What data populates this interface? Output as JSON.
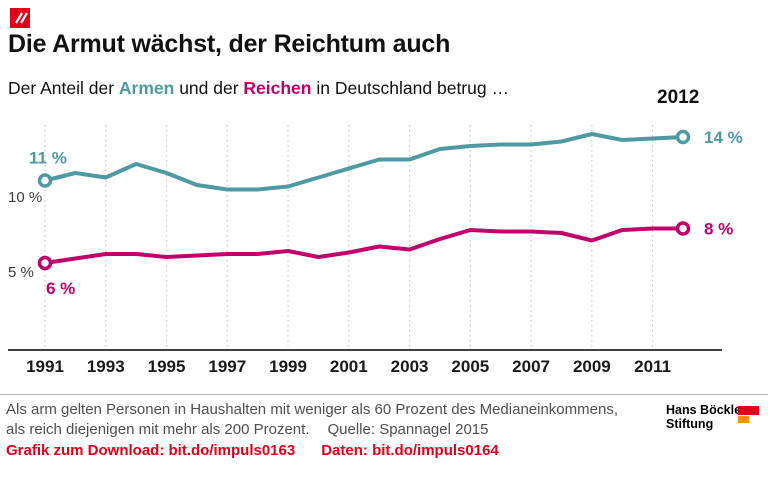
{
  "header": {
    "title": "Die Armut wächst, der Reichtum auch",
    "subtitle": {
      "pre": "Der Anteil der ",
      "armen": "Armen",
      "mid": " und der ",
      "reichen": "Reichen",
      "post": " in Deutschland betrug …"
    },
    "year_label": "2012"
  },
  "colors": {
    "teal": "#4D9AA3",
    "magenta": "#C2006B",
    "link_red": "#E2001A",
    "grid": "#C8C8C8",
    "axis": "#000000",
    "tick_text": "#1A1A1A",
    "ytick_text": "#3C3C3C"
  },
  "chart_data": {
    "type": "line",
    "x": [
      1991,
      1992,
      1993,
      1994,
      1995,
      1996,
      1997,
      1998,
      1999,
      2000,
      2001,
      2002,
      2003,
      2004,
      2005,
      2006,
      2007,
      2008,
      2009,
      2010,
      2011,
      2012
    ],
    "series": [
      {
        "name": "Armen",
        "color_key": "teal",
        "values": [
          11.1,
          11.6,
          11.3,
          12.2,
          11.6,
          10.8,
          10.5,
          10.5,
          10.7,
          11.3,
          11.9,
          12.5,
          12.5,
          13.2,
          13.4,
          13.5,
          13.5,
          13.7,
          14.2,
          13.8,
          13.9,
          14.0
        ],
        "start_label": "11 %",
        "end_label": "14 %"
      },
      {
        "name": "Reichen",
        "color_key": "magenta",
        "values": [
          5.6,
          5.9,
          6.2,
          6.2,
          6.0,
          6.1,
          6.2,
          6.2,
          6.4,
          6.0,
          6.3,
          6.7,
          6.5,
          7.2,
          7.8,
          7.7,
          7.7,
          7.6,
          7.1,
          7.8,
          7.9,
          7.9
        ],
        "start_label": "6 %",
        "end_label": "8 %"
      }
    ],
    "xtick_labels": [
      "1991",
      "1993",
      "1995",
      "1997",
      "1999",
      "2001",
      "2003",
      "2005",
      "2007",
      "2009",
      "2011"
    ],
    "yticks": [
      {
        "value": 10,
        "label": "10 %"
      },
      {
        "value": 5,
        "label": "5 %"
      }
    ],
    "ylim": [
      4,
      15
    ],
    "grid": "vertical-dotted",
    "legend": "inline-in-subtitle"
  },
  "footer": {
    "note_line1": "Als arm gelten Personen in Haushalten mit weniger als 60 Prozent des Medianeinkommens,",
    "note_line2": "als reich diejenigen mit mehr als 200 Prozent.",
    "source": "Quelle: Spannagel 2015",
    "download_label": "Grafik zum Download:",
    "download_link": "bit.do/impuls0163",
    "data_label": "Daten:",
    "data_link": "bit.do/impuls0164",
    "brand_line1": "Hans Böckler",
    "brand_line2": "Stiftung"
  }
}
